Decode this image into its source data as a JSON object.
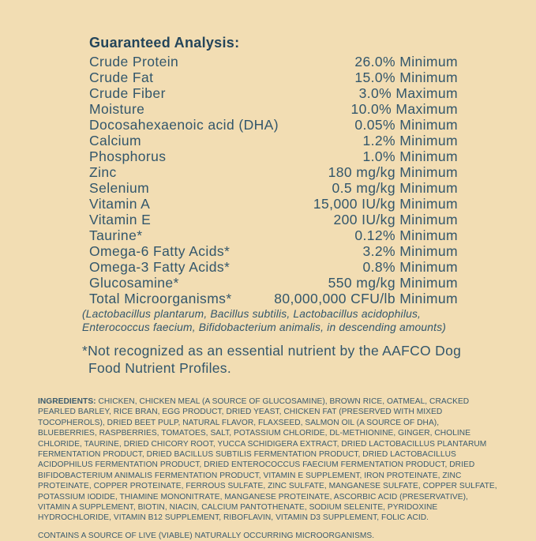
{
  "page": {
    "background_color": "#f2ddb3",
    "text_color": "#32566b",
    "title_color": "#24455a"
  },
  "guaranteed_analysis": {
    "title": "Guaranteed Analysis:",
    "rows": [
      {
        "name": "Crude Protein",
        "value": "26.0% Minimum"
      },
      {
        "name": "Crude Fat",
        "value": "15.0% Minimum"
      },
      {
        "name": "Crude Fiber",
        "value": "3.0% Maximum"
      },
      {
        "name": "Moisture",
        "value": "10.0% Maximum"
      },
      {
        "name": "Docosahexaenoic acid (DHA)",
        "value": "0.05% Minimum"
      },
      {
        "name": "Calcium",
        "value": "1.2% Minimum"
      },
      {
        "name": "Phosphorus",
        "value": "1.0% Minimum"
      },
      {
        "name": "Zinc",
        "value": "180 mg/kg Minimum"
      },
      {
        "name": "Selenium",
        "value": "0.5 mg/kg Minimum"
      },
      {
        "name": "Vitamin A",
        "value": "15,000 IU/kg Minimum"
      },
      {
        "name": "Vitamin E",
        "value": "200 IU/kg Minimum"
      },
      {
        "name": "Taurine*",
        "value": "0.12% Minimum"
      },
      {
        "name": "Omega-6 Fatty Acids*",
        "value": "3.2% Minimum"
      },
      {
        "name": "Omega-3 Fatty Acids*",
        "value": "0.8% Minimum"
      },
      {
        "name": "Glucosamine*",
        "value": "550 mg/kg Minimum"
      },
      {
        "name": "Total Microorganisms*",
        "value": "80,000,000 CFU/lb Minimum"
      }
    ],
    "microorganisms_note": {
      "line1": "(Lactobacillus plantarum, Bacillus subtilis, Lactobacillus acidophilus,",
      "line2": "Enterococcus faecium, Bifidobacterium animalis, in descending amounts)"
    },
    "footnote": {
      "line1": "*Not recognized as an essential nutrient by the AAFCO Dog",
      "line2": "Food Nutrient Profiles."
    }
  },
  "ingredients": {
    "label": "INGREDIENTS:",
    "text": "CHICKEN, CHICKEN MEAL (A SOURCE OF GLUCOSAMINE), BROWN RICE, OATMEAL, CRACKED PEARLED BARLEY, RICE BRAN, EGG PRODUCT, DRIED YEAST, CHICKEN FAT (PRESERVED WITH MIXED TOCOPHEROLS), DRIED BEET PULP, NATURAL FLAVOR, FLAXSEED, SALMON OIL (A SOURCE OF DHA), BLUEBERRIES, RASPBERRIES, TOMATOES, SALT, POTASSIUM CHLORIDE, DL-METHIONINE, GINGER, CHOLINE CHLORIDE, TAURINE, DRIED CHICORY ROOT, YUCCA SCHIDIGERA EXTRACT, DRIED LACTOBACILLUS PLANTARUM FERMENTATION PRODUCT, DRIED BACILLUS SUBTILIS FERMENTATION PRODUCT, DRIED LACTOBACILLUS ACIDOPHILUS FERMENTATION PRODUCT, DRIED ENTEROCOCCUS FAECIUM FERMENTATION PRODUCT, DRIED BIFIDOBACTERIUM ANIMALIS FERMENTATION PRODUCT, VITAMIN E SUPPLEMENT, IRON PROTEINATE, ZINC PROTEINATE, COPPER PROTEINATE, FERROUS SULFATE, ZINC SULFATE, MANGANESE SULFATE, COPPER SULFATE, POTASSIUM IODIDE, THIAMINE MONONITRATE, MANGANESE PROTEINATE, ASCORBIC ACID (PRESERVATIVE), VITAMIN A SUPPLEMENT, BIOTIN, NIACIN, CALCIUM PANTOTHENATE, SODIUM SELENITE, PYRIDOXINE HYDROCHLORIDE, VITAMIN B12 SUPPLEMENT, RIBOFLAVIN, VITAMIN D3 SUPPLEMENT, FOLIC ACID.",
    "contains_note": "CONTAINS A SOURCE OF LIVE (VIABLE) NATURALLY OCCURRING MICROORGANISMS."
  }
}
